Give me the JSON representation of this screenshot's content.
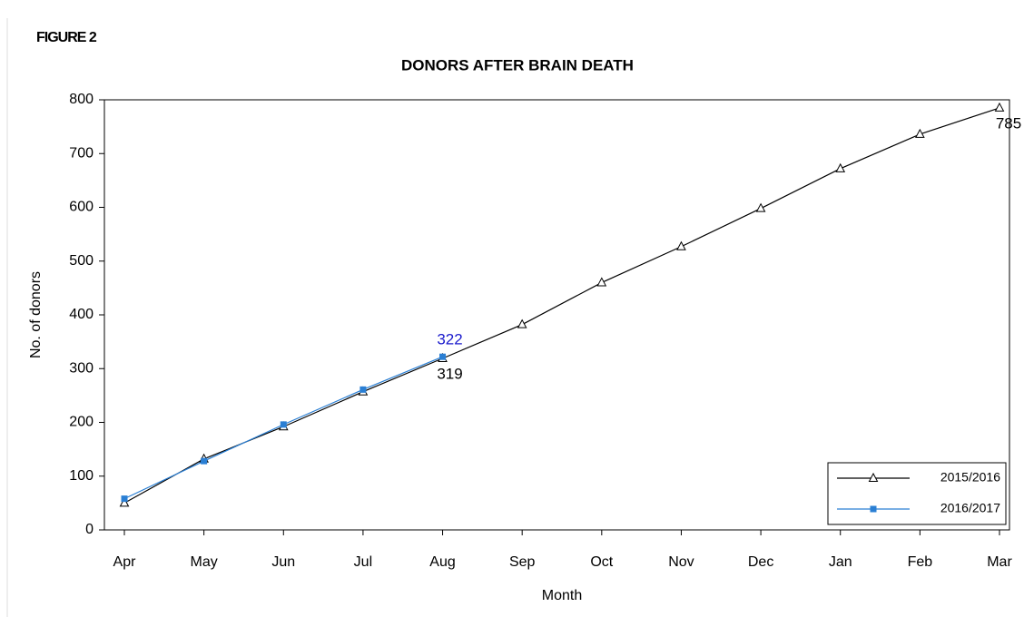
{
  "chart_data": {
    "type": "line",
    "figure_label": "FIGURE 2",
    "title": "DONORS AFTER BRAIN DEATH",
    "x_label": "Month",
    "y_label": "No. of donors",
    "categories": [
      "Apr",
      "May",
      "Jun",
      "Jul",
      "Aug",
      "Sep",
      "Oct",
      "Nov",
      "Dec",
      "Jan",
      "Feb",
      "Mar"
    ],
    "series": [
      {
        "name": "2015/2016",
        "color": "#000000",
        "marker": "triangle",
        "label_position": "below",
        "values": [
          50,
          132,
          192,
          257,
          319,
          382,
          460,
          527,
          598,
          672,
          736,
          785
        ],
        "value_labels": [
          null,
          null,
          null,
          null,
          "319",
          null,
          null,
          null,
          null,
          null,
          null,
          "785"
        ]
      },
      {
        "name": "2016/2017",
        "color": "#2a7fd4",
        "label_color": "#1a1acc",
        "marker": "square",
        "label_position": "above",
        "values": [
          58,
          128,
          196,
          261,
          322,
          null,
          null,
          null,
          null,
          null,
          null,
          null
        ],
        "value_labels": [
          null,
          null,
          null,
          null,
          "322",
          null,
          null,
          null,
          null,
          null,
          null,
          null
        ]
      }
    ],
    "ylim": [
      0,
      800
    ],
    "yticks": [
      0,
      100,
      200,
      300,
      400,
      500,
      600,
      700,
      800
    ],
    "legend": "lower right"
  }
}
